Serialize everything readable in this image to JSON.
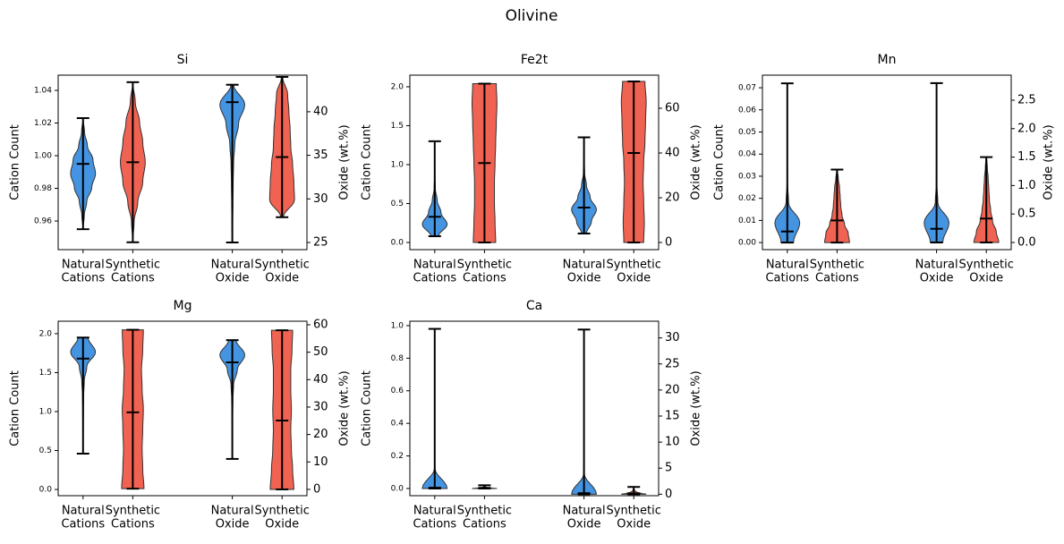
{
  "title": "Olivine",
  "chart_data": [
    {
      "type": "violin",
      "title": "Si",
      "ylabel": "Cation Count",
      "y2label": "Oxide (wt.%)",
      "categories": [
        [
          "Natural",
          "Cations"
        ],
        [
          "Synthetic",
          "Cations"
        ],
        [
          "Natural",
          "Oxide"
        ],
        [
          "Synthetic",
          "Oxide"
        ]
      ],
      "ylim": [
        0.9425,
        1.0493
      ],
      "yticks": [
        0.96,
        0.98,
        {
          "value": 1.0,
          "label": "1.00"
        },
        1.02,
        1.04
      ],
      "y2lim": [
        24.18,
        44.2
      ],
      "y2ticks": [
        25,
        30,
        35,
        40
      ],
      "violins": [
        {
          "color": "#3a8ee0",
          "axis": "y",
          "min": 0.955,
          "median": 0.995,
          "max": 1.023,
          "density": [
            0,
            0.1,
            0.3,
            0.7,
            1,
            0.8,
            0.35,
            0.12,
            0
          ]
        },
        {
          "color": "#ef5a48",
          "axis": "y",
          "min": 0.947,
          "median": 0.996,
          "max": 1.045,
          "density": [
            0,
            0.1,
            0.4,
            0.8,
            1,
            0.8,
            0.55,
            0.2,
            0
          ]
        },
        {
          "color": "#3a8ee0",
          "axis": "y2",
          "min": 25.0,
          "median": 41.1,
          "max": 43.1,
          "density": [
            0,
            0.03,
            0.05,
            0.07,
            0.1,
            0.2,
            0.5,
            1,
            0.1
          ]
        },
        {
          "color": "#ef5a48",
          "axis": "y2",
          "min": 27.9,
          "median": 34.8,
          "max": 44.0,
          "density": [
            0.1,
            1,
            0.95,
            0.85,
            0.7,
            0.65,
            0.55,
            0.45,
            0.05
          ]
        }
      ]
    },
    {
      "type": "violin",
      "title": "Fe2t",
      "ylabel": "Cation Count",
      "y2label": "Oxide (wt.%)",
      "categories": [
        [
          "Natural",
          "Cations"
        ],
        [
          "Synthetic",
          "Cations"
        ],
        [
          "Natural",
          "Oxide"
        ],
        [
          "Synthetic",
          "Oxide"
        ]
      ],
      "ylim": [
        -0.092,
        2.149
      ],
      "yticks": [
        {
          "value": 0,
          "label": "0.0"
        },
        0.5,
        {
          "value": 1,
          "label": "1.0"
        },
        1.5,
        {
          "value": 2,
          "label": "2.0"
        }
      ],
      "y2lim": [
        -3.2,
        74.8
      ],
      "y2ticks": [
        0,
        20,
        40,
        60
      ],
      "violins": [
        {
          "color": "#3a8ee0",
          "axis": "y",
          "min": 0.08,
          "median": 0.33,
          "max": 1.3,
          "density": [
            0.3,
            1,
            0.5,
            0.2,
            0.05,
            0.02,
            0.01,
            0.01,
            0
          ]
        },
        {
          "color": "#ef5a48",
          "axis": "y",
          "min": 0,
          "median": 1.02,
          "max": 2.04,
          "density": [
            0.9,
            0.85,
            0.8,
            0.8,
            0.85,
            0.9,
            0.95,
            1,
            0.95
          ]
        },
        {
          "color": "#3a8ee0",
          "axis": "y2",
          "min": 4,
          "median": 15.6,
          "max": 47,
          "density": [
            0.2,
            0.6,
            1,
            0.5,
            0.2,
            0.05,
            0.02,
            0.01,
            0
          ]
        },
        {
          "color": "#ef5a48",
          "axis": "y2",
          "min": 0,
          "median": 40,
          "max": 72,
          "density": [
            0.8,
            0.85,
            0.8,
            0.75,
            0.8,
            0.9,
            0.95,
            1,
            0.9
          ]
        }
      ]
    },
    {
      "type": "violin",
      "title": "Mn",
      "ylabel": "Cation Count",
      "y2label": "Oxide (wt.%)",
      "categories": [
        [
          "Natural",
          "Cations"
        ],
        [
          "Synthetic",
          "Cations"
        ],
        [
          "Natural",
          "Oxide"
        ],
        [
          "Synthetic",
          "Oxide"
        ]
      ],
      "ylim": [
        -0.0032,
        0.0757
      ],
      "yticks": [
        {
          "value": 0,
          "label": "0.00"
        },
        0.01,
        0.02,
        0.03,
        0.04,
        0.05,
        0.06,
        0.07
      ],
      "y2lim": [
        -0.126,
        2.94
      ],
      "y2ticks": [
        {
          "value": 0,
          "label": "0.0"
        },
        0.5,
        {
          "value": 1,
          "label": "1.0"
        },
        1.5,
        {
          "value": 2,
          "label": "2.0"
        },
        2.5
      ],
      "violins": [
        {
          "color": "#3a8ee0",
          "axis": "y",
          "min": 0,
          "median": 0.005,
          "max": 0.072,
          "density": [
            0.5,
            1,
            0.1,
            0.02,
            0.01,
            0,
            0,
            0,
            0
          ]
        },
        {
          "color": "#ef5a48",
          "axis": "y",
          "min": 0,
          "median": 0.01,
          "max": 0.033,
          "density": [
            1,
            0.9,
            0.6,
            0.4,
            0.3,
            0.25,
            0.2,
            0.1,
            0.02
          ]
        },
        {
          "color": "#3a8ee0",
          "axis": "y2",
          "min": 0,
          "median": 0.24,
          "max": 2.8,
          "density": [
            0.5,
            1,
            0.1,
            0.02,
            0.01,
            0,
            0,
            0,
            0
          ]
        },
        {
          "color": "#ef5a48",
          "axis": "y2",
          "min": 0,
          "median": 0.42,
          "max": 1.5,
          "density": [
            1,
            0.8,
            0.5,
            0.35,
            0.25,
            0.2,
            0.15,
            0.08,
            0.02
          ]
        }
      ]
    },
    {
      "type": "violin",
      "title": "Mg",
      "ylabel": "Cation Count",
      "y2label": "Oxide (wt.%)",
      "categories": [
        [
          "Natural",
          "Cations"
        ],
        [
          "Synthetic",
          "Cations"
        ],
        [
          "Natural",
          "Oxide"
        ],
        [
          "Synthetic",
          "Oxide"
        ]
      ],
      "ylim": [
        -0.08,
        2.16
      ],
      "yticks": [
        {
          "value": 0,
          "label": "0.0"
        },
        0.5,
        {
          "value": 1,
          "label": "1.0"
        },
        1.5,
        {
          "value": 2,
          "label": "2.0"
        }
      ],
      "y2lim": [
        -2.3,
        61.3
      ],
      "y2ticks": [
        0,
        10,
        20,
        30,
        40,
        50,
        60
      ],
      "violins": [
        {
          "color": "#3a8ee0",
          "axis": "y",
          "min": 0.46,
          "median": 1.68,
          "max": 1.95,
          "density": [
            0,
            0.01,
            0.02,
            0.03,
            0.05,
            0.1,
            0.3,
            1,
            0.4
          ]
        },
        {
          "color": "#ef5a48",
          "axis": "y",
          "min": 0.01,
          "median": 0.99,
          "max": 2.05,
          "density": [
            0.9,
            0.8,
            0.75,
            0.8,
            0.85,
            0.75,
            0.7,
            0.8,
            0.85
          ]
        },
        {
          "color": "#3a8ee0",
          "axis": "y2",
          "min": 11.1,
          "median": 46.3,
          "max": 54.4,
          "density": [
            0,
            0.01,
            0.02,
            0.03,
            0.05,
            0.1,
            0.4,
            1,
            0.3
          ]
        },
        {
          "color": "#ef5a48",
          "axis": "y2",
          "min": 0,
          "median": 25.1,
          "max": 58,
          "density": [
            0.95,
            0.85,
            0.75,
            0.7,
            0.75,
            0.7,
            0.7,
            0.8,
            0.85
          ]
        }
      ]
    },
    {
      "type": "violin",
      "title": "Ca",
      "ylabel": "Cation Count",
      "y2label": "Oxide (wt.%)",
      "categories": [
        [
          "Natural",
          "Cations"
        ],
        [
          "Synthetic",
          "Cations"
        ],
        [
          "Natural",
          "Oxide"
        ],
        [
          "Synthetic",
          "Oxide"
        ]
      ],
      "ylim": [
        -0.044,
        1.027
      ],
      "yticks": [
        {
          "value": 0,
          "label": "0.0"
        },
        0.2,
        0.4,
        0.6,
        0.8,
        {
          "value": 1,
          "label": "1.0"
        }
      ],
      "y2lim": [
        -0.28,
        33.2
      ],
      "y2ticks": [
        0,
        5,
        10,
        15,
        20,
        25,
        30
      ],
      "violins": [
        {
          "color": "#3a8ee0",
          "axis": "y",
          "min": 0,
          "median": 0.005,
          "max": 0.98,
          "density": [
            1,
            0.02,
            0,
            0,
            0,
            0,
            0,
            0,
            0
          ]
        },
        {
          "color": "#ef5a48",
          "axis": "y",
          "min": 0,
          "median": 0.004,
          "max": 0.02,
          "density": [
            1,
            0.6,
            0.3,
            0.15,
            0.08,
            0.04,
            0.02,
            0.01,
            0
          ]
        },
        {
          "color": "#3a8ee0",
          "axis": "y2",
          "min": 0,
          "median": 0.2,
          "max": 31.6,
          "density": [
            1,
            0.02,
            0,
            0,
            0,
            0,
            0,
            0,
            0
          ]
        },
        {
          "color": "#ef5a48",
          "axis": "y2",
          "min": 0,
          "median": 0.15,
          "max": 1.4,
          "density": [
            1,
            0.6,
            0.3,
            0.15,
            0.08,
            0.04,
            0.02,
            0.01,
            0
          ]
        }
      ]
    }
  ]
}
